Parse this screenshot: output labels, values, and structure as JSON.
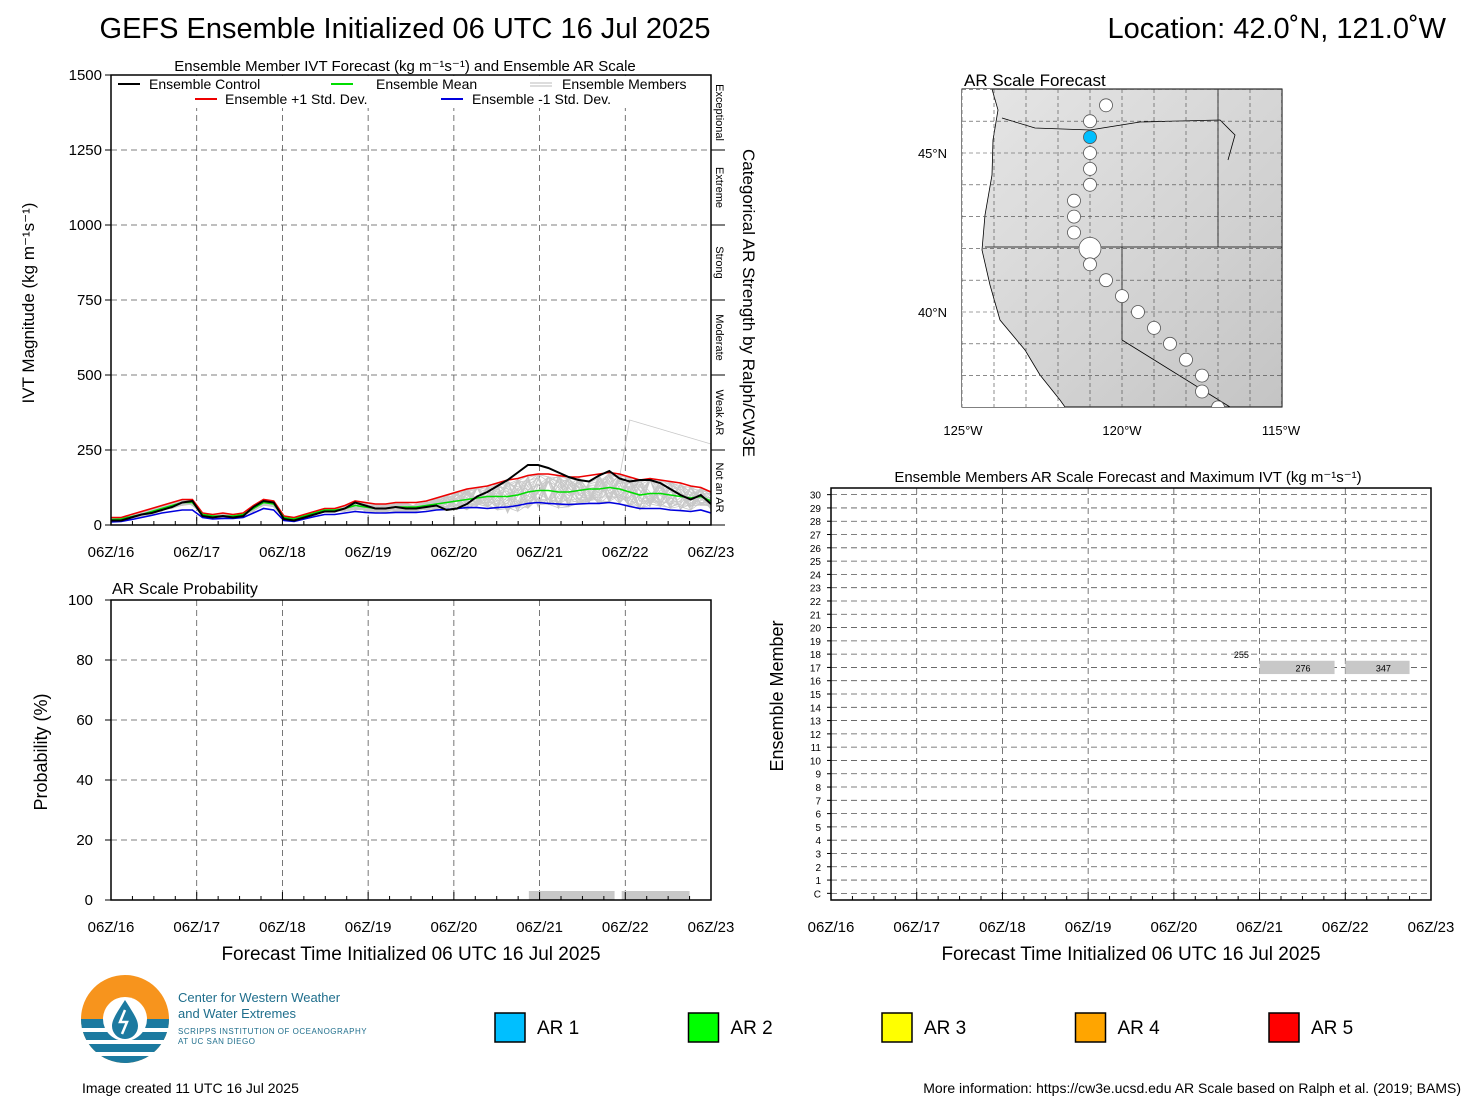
{
  "header": {
    "title": "GEFS Ensemble Initialized 06 UTC 16 Jul 2025",
    "location": "Location: 42.0˚N, 121.0˚W"
  },
  "ivt_panel": {
    "title": "Ensemble Member IVT Forecast (kg m⁻¹s⁻¹) and Ensemble AR Scale",
    "ylabel": "IVT Magnitude (kg m⁻¹s⁻¹)",
    "right_label": "Categorical AR Strength by Ralph/CW3E",
    "category_labels": [
      "Exceptional",
      "Extreme",
      "Strong",
      "Moderate",
      "Weak AR",
      "Not an AR"
    ],
    "legend": [
      "Ensemble Control",
      "Ensemble Mean",
      "Ensemble Members",
      "Ensemble +1 Std. Dev.",
      "Ensemble -1 Std. Dev."
    ]
  },
  "prob_panel": {
    "title": "AR Scale Probability",
    "ylabel": "Probability (%)",
    "xlabel": "Forecast Time Initialized 06 UTC 16 Jul 2025"
  },
  "map_panel": {
    "title": "AR Scale Forecast",
    "lat_labels": [
      "45°N",
      "40°N"
    ],
    "lon_labels": [
      "125°W",
      "120°W",
      "115°W"
    ]
  },
  "members_panel": {
    "title": "Ensemble Members AR Scale Forecast and Maximum IVT (kg m⁻¹s⁻¹)",
    "ylabel": "Ensemble Member",
    "xlabel": "Forecast Time Initialized 06 UTC 16 Jul 2025",
    "member_labels": [
      "C",
      "1",
      "2",
      "3",
      "4",
      "5",
      "6",
      "7",
      "8",
      "9",
      "10",
      "11",
      "12",
      "13",
      "14",
      "15",
      "16",
      "17",
      "18",
      "19",
      "20",
      "21",
      "22",
      "23",
      "24",
      "25",
      "26",
      "27",
      "28",
      "29",
      "30"
    ]
  },
  "legend_bottom": {
    "items": [
      {
        "label": "AR 1",
        "color": "#00bfff"
      },
      {
        "label": "AR 2",
        "color": "#00ff00"
      },
      {
        "label": "AR 3",
        "color": "#ffff00"
      },
      {
        "label": "AR 4",
        "color": "#ffa500"
      },
      {
        "label": "AR 5",
        "color": "#ff0000"
      }
    ]
  },
  "logo": {
    "line1": "Center for Western Weather",
    "line2": "and Water Extremes",
    "line3": "SCRIPPS INSTITUTION OF OCEANOGRAPHY",
    "line4": "AT UC SAN DIEGO"
  },
  "footer": {
    "created": "Image created 11 UTC 16 Jul 2025",
    "more_info": "More information: https://cw3e.ucsd.edu AR Scale based on Ralph et al. (2019; BAMS)"
  },
  "chart_data": [
    {
      "type": "line",
      "name": "ivt_forecast",
      "x_labels": [
        "06Z/16",
        "06Z/17",
        "06Z/18",
        "06Z/19",
        "06Z/20",
        "06Z/21",
        "06Z/22",
        "06Z/23"
      ],
      "x_hours_step": 6,
      "ylim": [
        0,
        1500
      ],
      "yticks": [
        0,
        250,
        500,
        750,
        1000,
        1250,
        1500
      ],
      "grid": true,
      "category_bounds": [
        0,
        250,
        500,
        750,
        1000,
        1250,
        1500
      ],
      "series": [
        {
          "name": "Ensemble Control",
          "color": "#000000",
          "values": [
            15,
            15,
            25,
            35,
            40,
            50,
            60,
            75,
            80,
            30,
            25,
            30,
            25,
            30,
            60,
            80,
            75,
            20,
            15,
            25,
            35,
            45,
            45,
            55,
            75,
            65,
            55,
            55,
            60,
            55,
            55,
            60,
            65,
            50,
            55,
            70,
            95,
            110,
            130,
            150,
            175,
            200,
            200,
            190,
            175,
            160,
            150,
            145,
            165,
            180,
            155,
            145,
            150,
            150,
            140,
            120,
            100,
            85,
            100,
            70
          ]
        },
        {
          "name": "Ensemble Mean",
          "color": "#00dd00",
          "values": [
            18,
            20,
            28,
            35,
            45,
            55,
            65,
            75,
            75,
            35,
            30,
            30,
            30,
            35,
            55,
            75,
            70,
            25,
            20,
            30,
            40,
            50,
            50,
            55,
            65,
            60,
            55,
            55,
            60,
            60,
            60,
            65,
            70,
            75,
            80,
            85,
            90,
            95,
            95,
            95,
            100,
            110,
            115,
            115,
            110,
            110,
            115,
            120,
            120,
            125,
            120,
            110,
            100,
            105,
            105,
            100,
            95,
            90,
            95,
            80
          ]
        },
        {
          "name": "Ensemble +1 Std. Dev.",
          "color": "#ee0000",
          "values": [
            25,
            25,
            35,
            45,
            55,
            65,
            75,
            85,
            85,
            40,
            35,
            40,
            35,
            40,
            65,
            85,
            80,
            30,
            25,
            35,
            45,
            55,
            55,
            65,
            80,
            75,
            70,
            70,
            75,
            75,
            75,
            80,
            90,
            100,
            110,
            120,
            125,
            130,
            140,
            150,
            155,
            165,
            170,
            170,
            165,
            160,
            160,
            165,
            170,
            175,
            170,
            160,
            150,
            155,
            150,
            145,
            140,
            130,
            125,
            110
          ]
        },
        {
          "name": "Ensemble -1 Std. Dev.",
          "color": "#0000dd",
          "values": [
            10,
            12,
            18,
            25,
            32,
            40,
            45,
            50,
            50,
            25,
            20,
            22,
            22,
            25,
            40,
            55,
            50,
            15,
            12,
            20,
            28,
            35,
            35,
            40,
            45,
            42,
            40,
            40,
            42,
            42,
            42,
            45,
            50,
            52,
            55,
            58,
            58,
            55,
            58,
            60,
            65,
            72,
            75,
            72,
            70,
            68,
            70,
            72,
            72,
            75,
            70,
            62,
            55,
            55,
            55,
            50,
            48,
            45,
            50,
            40
          ]
        }
      ]
    },
    {
      "type": "bar",
      "name": "ar_scale_probability",
      "ylim": [
        0,
        100
      ],
      "yticks": [
        0,
        20,
        40,
        60,
        80,
        100
      ],
      "bars": [
        {
          "x_start_hours": 117,
          "x_end_hours": 141,
          "value": 3,
          "color": "#c8c8c8"
        },
        {
          "x_start_hours": 143,
          "x_end_hours": 162,
          "value": 3,
          "color": "#c8c8c8"
        }
      ]
    },
    {
      "type": "heatmap",
      "name": "members_ar_scale",
      "members": 31,
      "highlights": [
        {
          "member": "17",
          "x_start_hours": 120,
          "x_end_hours": 141,
          "max_ivt": "276",
          "color": "#c8c8c8"
        },
        {
          "member": "17",
          "x_start_hours": 144,
          "x_end_hours": 162,
          "max_ivt": "347",
          "color": "#c8c8c8"
        },
        {
          "member": "18",
          "label_only": true,
          "x_hours": 117,
          "max_ivt": "255"
        }
      ]
    }
  ]
}
